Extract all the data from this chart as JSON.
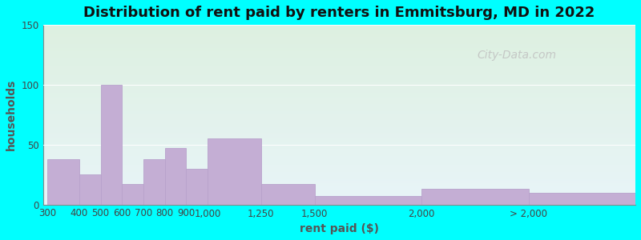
{
  "title": "Distribution of rent paid by renters in Emmitsburg, MD in 2022",
  "xlabel": "rent paid ($)",
  "ylabel": "households",
  "bar_color": "#c4aed4",
  "bar_edge_color": "#b8a2cc",
  "background_outer": "#00ffff",
  "ylim": [
    0,
    150
  ],
  "yticks": [
    0,
    50,
    100,
    150
  ],
  "bin_edges": [
    250,
    400,
    500,
    600,
    700,
    800,
    900,
    1000,
    1250,
    1500,
    2000,
    2500,
    3000
  ],
  "bin_labels": [
    "300",
    "400",
    "500",
    "600",
    "700",
    "800",
    "900",
    "1,000",
    "1,250",
    "1,500",
    "2,000",
    "> 2,000"
  ],
  "values": [
    38,
    25,
    100,
    17,
    38,
    47,
    30,
    55,
    17,
    7,
    13,
    10
  ],
  "watermark": "City-Data.com",
  "title_fontsize": 13,
  "label_fontsize": 10,
  "tick_fontsize": 8.5,
  "grad_top": "#ddf0e0",
  "grad_bottom": "#e8f4f8"
}
